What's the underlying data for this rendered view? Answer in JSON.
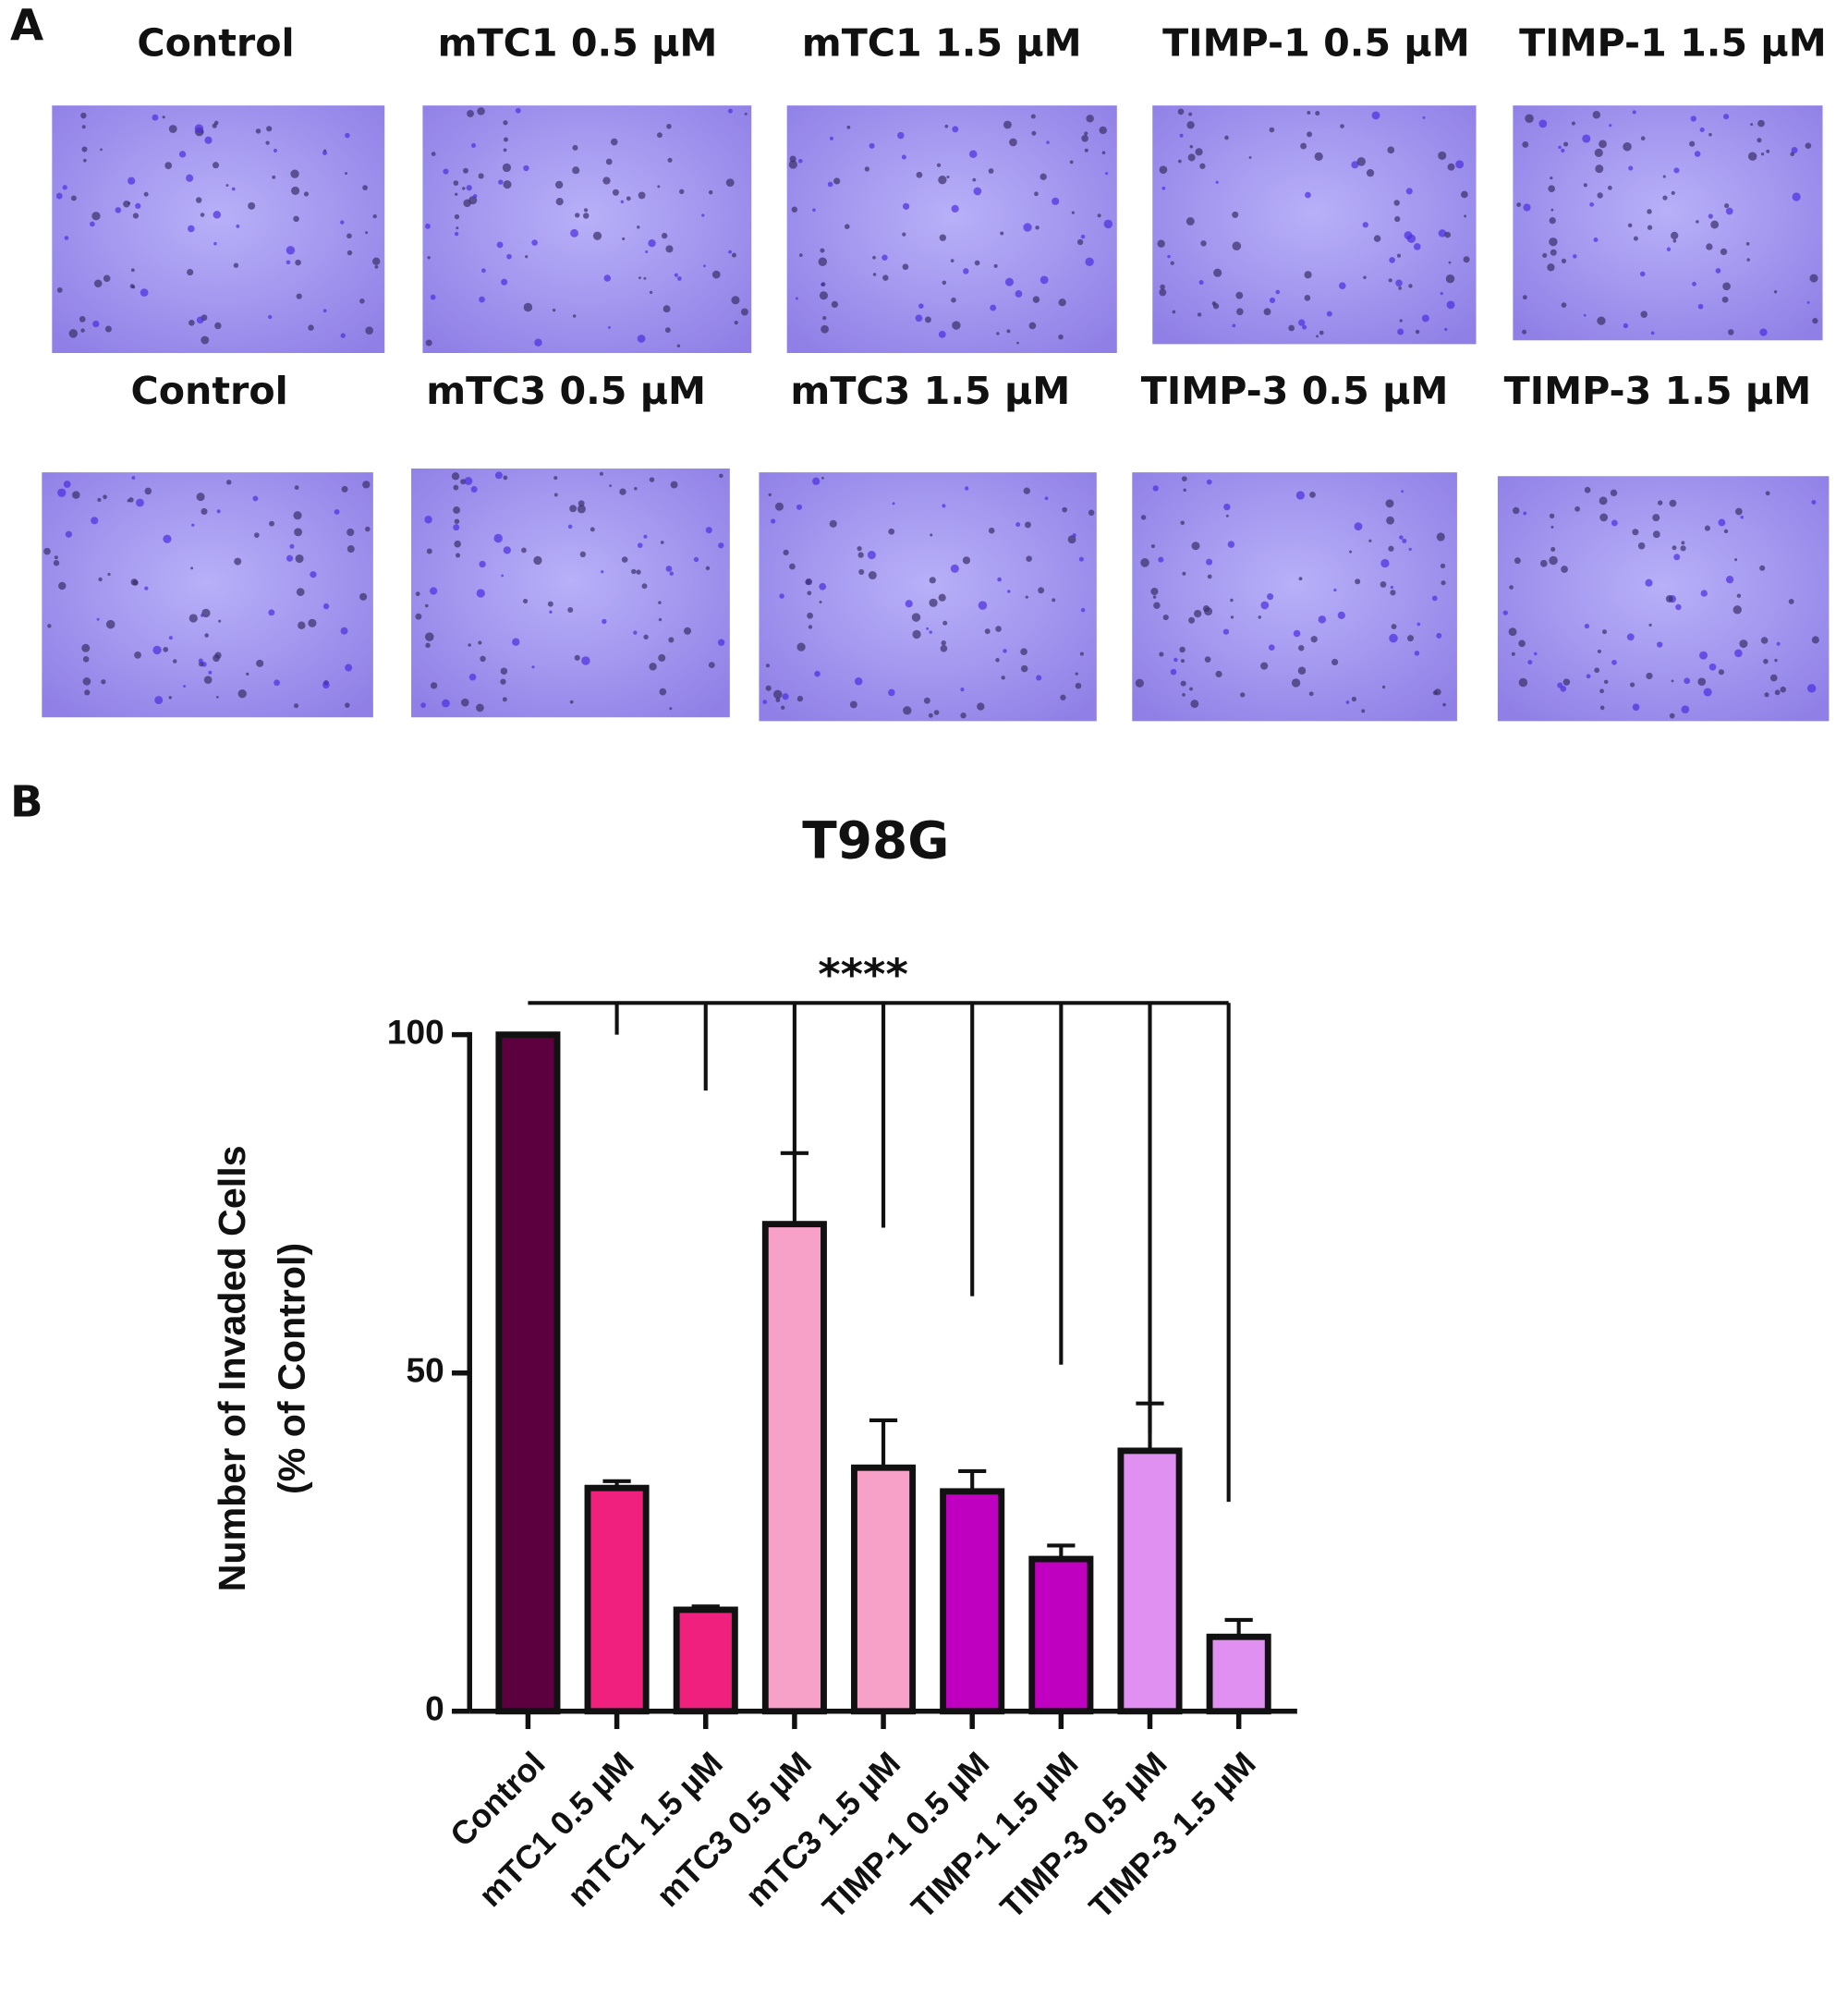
{
  "panel_labels": [
    "A",
    "B"
  ],
  "micrographs": {
    "rows": [
      {
        "labels": [
          "Control",
          "mTC1 0.5 µM",
          "mTC1 1.5 µM",
          "TIMP-1 0.5 µM",
          "TIMP-1 1.5 µM"
        ]
      },
      {
        "labels": [
          "Control",
          "mTC3 0.5 µM",
          "mTC3 1.5 µM",
          "TIMP-3  0.5 µM",
          "TIMP-3  1.5 µM"
        ]
      }
    ]
  },
  "chart_data": {
    "type": "bar",
    "title": "T98G",
    "ylabel": [
      "Number of Invaded Cells",
      "(% of Control)"
    ],
    "categories": [
      "Control",
      "mTC1 0.5 µM",
      "mTC1 1.5 µM",
      "mTC3 0.5 µM",
      "mTC3 1.5 µM",
      "TIMP-1 0.5 µM",
      "TIMP-1 1.5 µM",
      "TIMP-3 0.5 µM",
      "TIMP-3 1.5 µM"
    ],
    "values": [
      100,
      33,
      15,
      72,
      36,
      32.5,
      22.5,
      38.5,
      11
    ],
    "errors": [
      0,
      1,
      0.5,
      10.5,
      7,
      3,
      2,
      7,
      2.5
    ],
    "colors": [
      "#5c0040",
      "#f0207f",
      "#f0207f",
      "#f7a0c8",
      "#f7a0c8",
      "#c000c0",
      "#c000c0",
      "#e090f0",
      "#e090f0"
    ],
    "ylim": [
      0,
      100
    ],
    "yticks": [
      0,
      50,
      100
    ],
    "significance": "****"
  }
}
